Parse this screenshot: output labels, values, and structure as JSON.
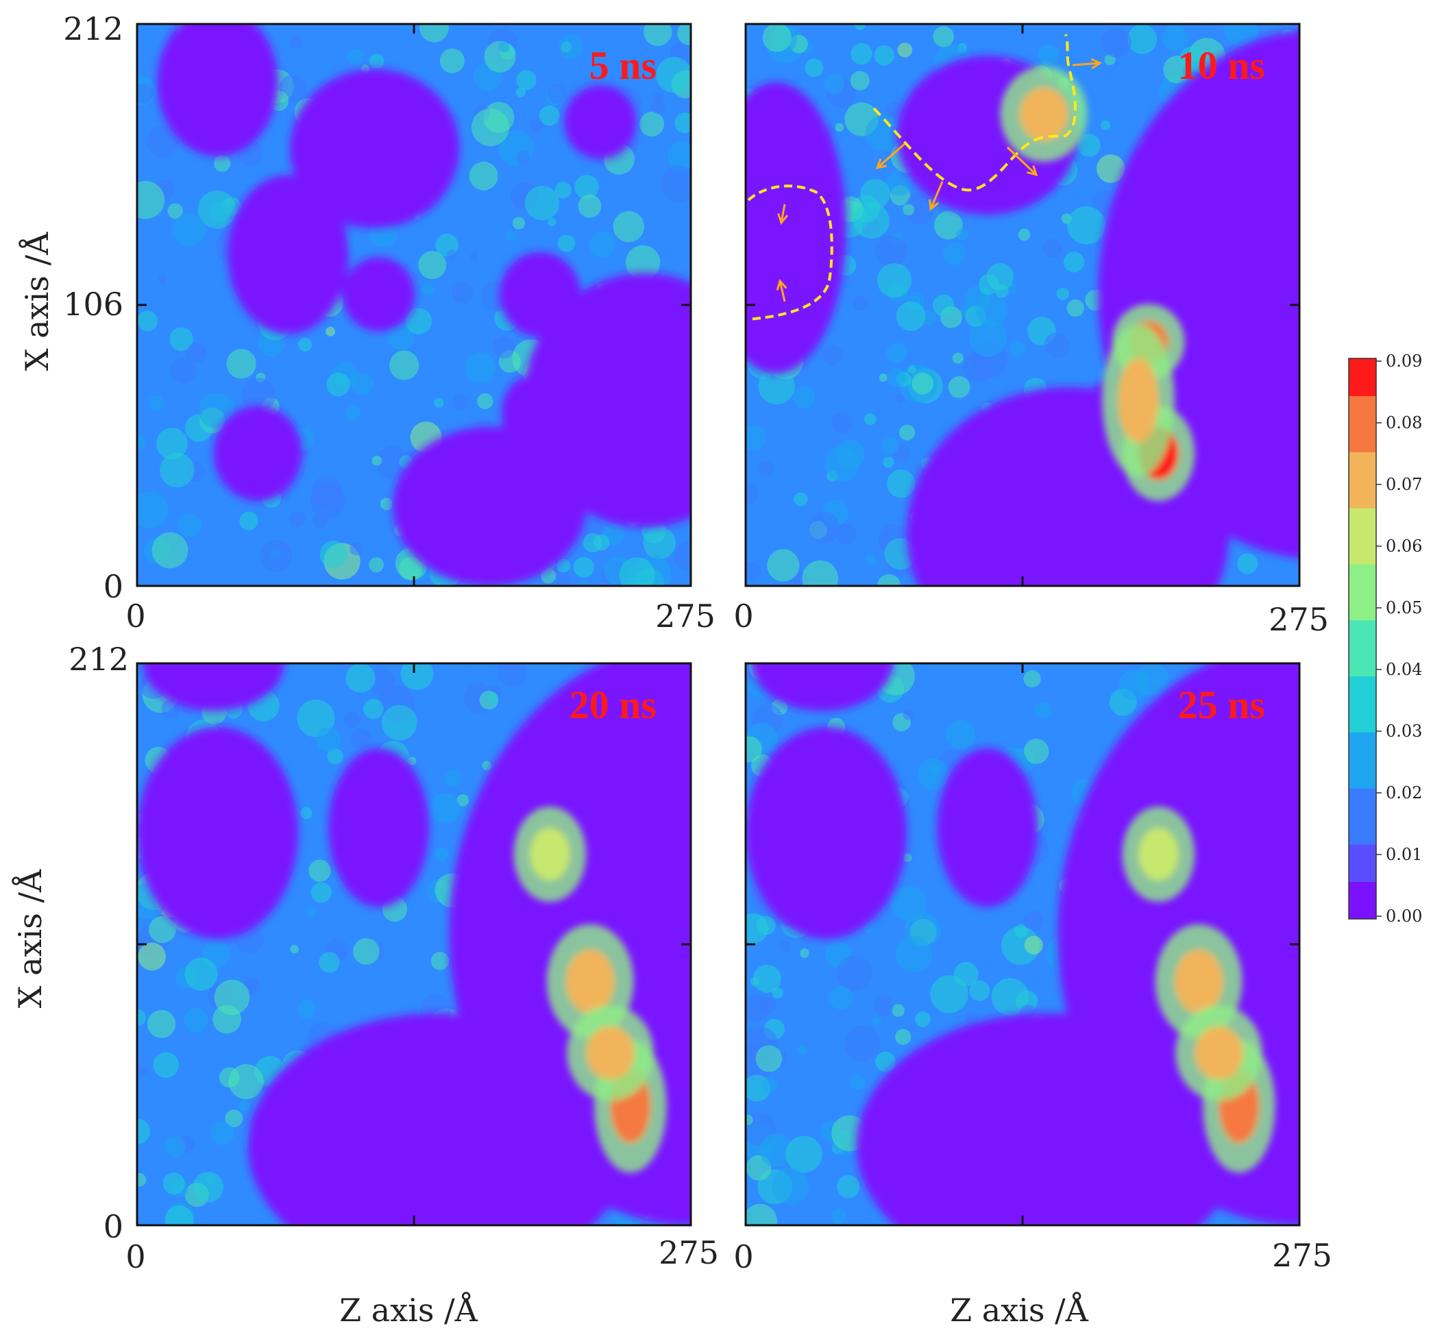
{
  "chart_data": {
    "type": "heatmap",
    "xlabel": "Z axis /Å",
    "ylabel": "X axis /Å",
    "xlim": [
      0,
      275
    ],
    "ylim": [
      0,
      212
    ],
    "x_ticks": [
      "0",
      "275"
    ],
    "y_ticks": [
      "0",
      "106",
      "212"
    ],
    "colorbar": {
      "range": [
        0.0,
        0.09
      ],
      "ticks": [
        "0.00",
        "0.01",
        "0.02",
        "0.03",
        "0.04",
        "0.05",
        "0.06",
        "0.07",
        "0.08",
        "0.09"
      ],
      "colors": [
        "#7a12ff",
        "#5a4dff",
        "#3a7cff",
        "#1ea6f0",
        "#22cfd6",
        "#4ae6b3",
        "#8eef86",
        "#c7e86e",
        "#f2b45a",
        "#f5793f",
        "#ff1a1a"
      ]
    },
    "panels": [
      {
        "label": "5 ns",
        "row": 0,
        "col": 0,
        "voids": [
          [
            118,
            165,
            42,
            30
          ],
          [
            252,
            70,
            60,
            48
          ],
          [
            75,
            125,
            30,
            30
          ],
          [
            175,
            30,
            48,
            30
          ],
          [
            40,
            190,
            30,
            28
          ],
          [
            200,
            110,
            20,
            16
          ],
          [
            120,
            110,
            18,
            14
          ],
          [
            230,
            175,
            18,
            14
          ],
          [
            195,
            65,
            14,
            14
          ],
          [
            60,
            50,
            22,
            18
          ]
        ],
        "hot": []
      },
      {
        "label": "10 ns",
        "row": 0,
        "col": 1,
        "voids": [
          [
            285,
            110,
            110,
            100
          ],
          [
            160,
            20,
            80,
            55
          ],
          [
            205,
            48,
            50,
            35
          ],
          [
            15,
            135,
            35,
            55
          ],
          [
            120,
            170,
            45,
            30
          ],
          [
            260,
            180,
            20,
            18
          ]
        ],
        "hot": [
          [
            148,
            178,
            12,
            10,
            0.075
          ],
          [
            200,
            92,
            10,
            8,
            0.082
          ],
          [
            205,
            50,
            10,
            10,
            0.086
          ],
          [
            195,
            70,
            10,
            16,
            0.07
          ]
        ]
      },
      {
        "label": "20 ns",
        "row": 1,
        "col": 1,
        "voids": [
          [
            275,
            110,
            120,
            110
          ],
          [
            150,
            30,
            95,
            50
          ],
          [
            175,
            35,
            40,
            30
          ],
          [
            40,
            148,
            40,
            40
          ],
          [
            120,
            150,
            25,
            30
          ],
          [
            250,
            185,
            25,
            25
          ],
          [
            245,
            100,
            18,
            18
          ],
          [
            258,
            165,
            20,
            14
          ],
          [
            38,
            212,
            35,
            18
          ]
        ],
        "hot": [
          [
            225,
            92,
            12,
            12,
            0.07
          ],
          [
            245,
            45,
            10,
            14,
            0.085
          ],
          [
            235,
            65,
            12,
            10,
            0.075
          ],
          [
            205,
            140,
            10,
            10,
            0.06
          ]
        ]
      },
      {
        "label": "25 ns",
        "row": 1,
        "col": 2,
        "voids": [
          [
            275,
            110,
            120,
            110
          ],
          [
            150,
            30,
            95,
            50
          ],
          [
            175,
            35,
            40,
            30
          ],
          [
            40,
            148,
            40,
            40
          ],
          [
            120,
            150,
            25,
            30
          ],
          [
            250,
            185,
            25,
            25
          ],
          [
            245,
            100,
            18,
            18
          ],
          [
            258,
            165,
            20,
            14
          ],
          [
            38,
            212,
            35,
            18
          ]
        ],
        "hot": [
          [
            225,
            92,
            12,
            12,
            0.07
          ],
          [
            245,
            45,
            10,
            14,
            0.085
          ],
          [
            235,
            65,
            12,
            10,
            0.075
          ],
          [
            205,
            140,
            10,
            10,
            0.06
          ]
        ]
      }
    ]
  }
}
